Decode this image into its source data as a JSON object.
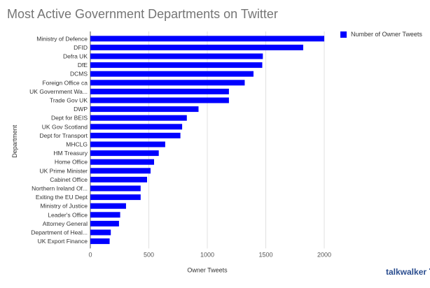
{
  "title": "Most Active Government Departments on Twitter",
  "logo_text": "talkwalker",
  "chart_data": {
    "type": "bar",
    "orientation": "horizontal",
    "categories": [
      "Ministry of Defence",
      "DFID",
      "Defra UK",
      "DfE",
      "DCMS",
      "Foreign Office ca",
      "UK Government Wa...",
      "Trade Gov UK",
      "DWP",
      "Dept for BEIS",
      "UK Gov Scotland",
      "Dept for Transport",
      "MHCLG",
      "HM Treasury",
      "Home Office",
      "UK Prime Minister",
      "Cabinet Office",
      "Northern Ireland Of...",
      "Exiting the EU Dept",
      "Ministry of Justice",
      "Leader's Office",
      "Attorney General",
      "Department of Heal...",
      "UK Export Finance"
    ],
    "series": [
      {
        "name": "Number of Owner Tweets",
        "color": "#0000ff",
        "values": [
          2000,
          1820,
          1475,
          1470,
          1395,
          1320,
          1185,
          1185,
          925,
          825,
          785,
          770,
          640,
          585,
          545,
          515,
          485,
          430,
          430,
          305,
          255,
          245,
          175,
          165
        ]
      }
    ],
    "xlabel": "Owner Tweets",
    "ylabel": "Department",
    "xlim": [
      0,
      2000
    ],
    "xticks": [
      0,
      500,
      1000,
      1500,
      2000
    ],
    "grid": true,
    "legend_position": "top-right"
  }
}
